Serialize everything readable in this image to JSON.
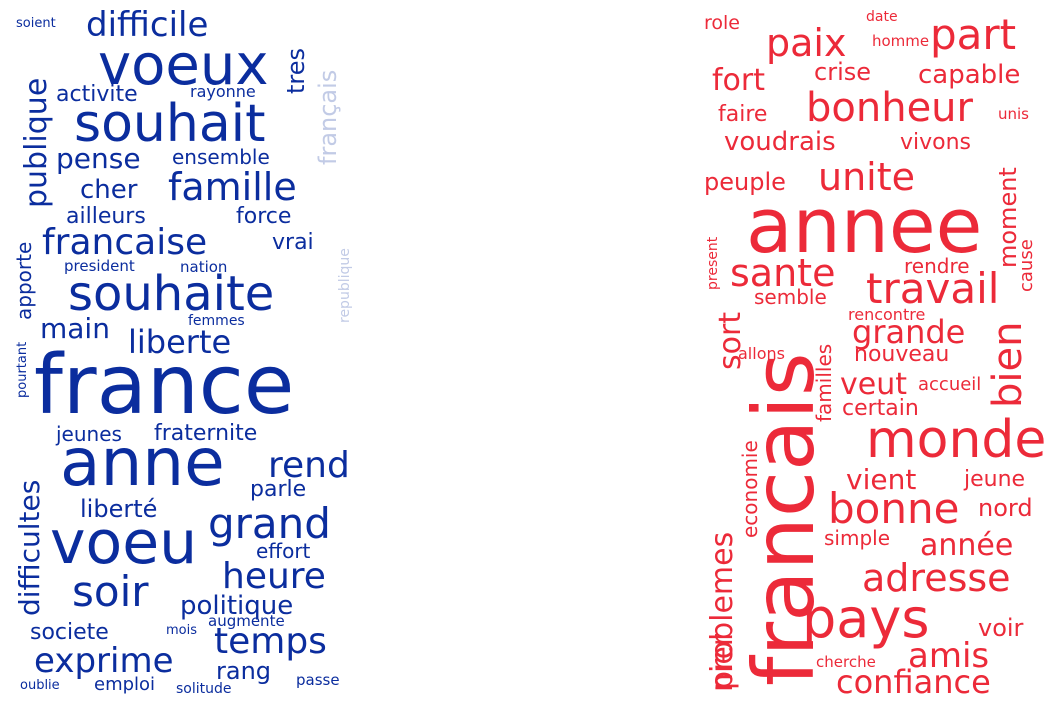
{
  "left_cloud": {
    "color": "#0b2d9e",
    "light_color": "#c2cbe6",
    "words": {
      "soient": "soient",
      "difficile": "difficile",
      "voeux": "voeux",
      "tres": "tres",
      "francais": "français",
      "publique": "publique",
      "activite": "activite",
      "rayonne": "rayonne",
      "souhait": "souhait",
      "pense": "pense",
      "ensemble": "ensemble",
      "cher": "cher",
      "famille": "famille",
      "ailleurs": "ailleurs",
      "force": "force",
      "francaise": "francaise",
      "vrai": "vrai",
      "president": "president",
      "nation": "nation",
      "apporte": "apporte",
      "republique": "republique",
      "souhaite": "souhaite",
      "main": "main",
      "femmes": "femmes",
      "liberte": "liberte",
      "pourtant": "pourtant",
      "france": "france",
      "jeunes": "jeunes",
      "fraternite": "fraternite",
      "difficultes": "difficultes",
      "anne": "anne",
      "rend": "rend",
      "parle": "parle",
      "liberte_accent": "liberté",
      "grand": "grand",
      "voeu": "voeu",
      "effort": "effort",
      "heure": "heure",
      "soir": "soir",
      "politique": "politique",
      "societe": "societe",
      "mois": "mois",
      "augmente": "augmente",
      "temps": "temps",
      "exprime": "exprime",
      "rang": "rang",
      "oublie": "oublie",
      "emploi": "emploi",
      "solitude": "solitude",
      "passe": "passe"
    }
  },
  "right_cloud": {
    "color": "#ec2a39",
    "words": {
      "role": "role",
      "date": "date",
      "homme": "homme",
      "paix": "paix",
      "part": "part",
      "fort": "fort",
      "crise": "crise",
      "capable": "capable",
      "faire": "faire",
      "bonheur": "bonheur",
      "unis": "unis",
      "voudrais": "voudrais",
      "vivons": "vivons",
      "peuple": "peuple",
      "unite": "unite",
      "moment": "moment",
      "present": "present",
      "annee": "annee",
      "cause": "cause",
      "sante": "sante",
      "rendre": "rendre",
      "travail": "travail",
      "semble": "semble",
      "sort": "sort",
      "familles": "familles",
      "rencontre": "rencontre",
      "grande": "grande",
      "bien": "bien",
      "allons": "allons",
      "nouveau": "nouveau",
      "francais": "francais",
      "veut": "veut",
      "accueil": "accueil",
      "certain": "certain",
      "problemes": "problemes",
      "economie": "economie",
      "monde": "monde",
      "vient": "vient",
      "jeune": "jeune",
      "bonne": "bonne",
      "nord": "nord",
      "simple": "simple",
      "annee_accent": "année",
      "adresse": "adresse",
      "nier": "nier",
      "pays": "pays",
      "voir": "voir",
      "amis": "amis",
      "cherche": "cherche",
      "confiance": "confiance"
    }
  }
}
